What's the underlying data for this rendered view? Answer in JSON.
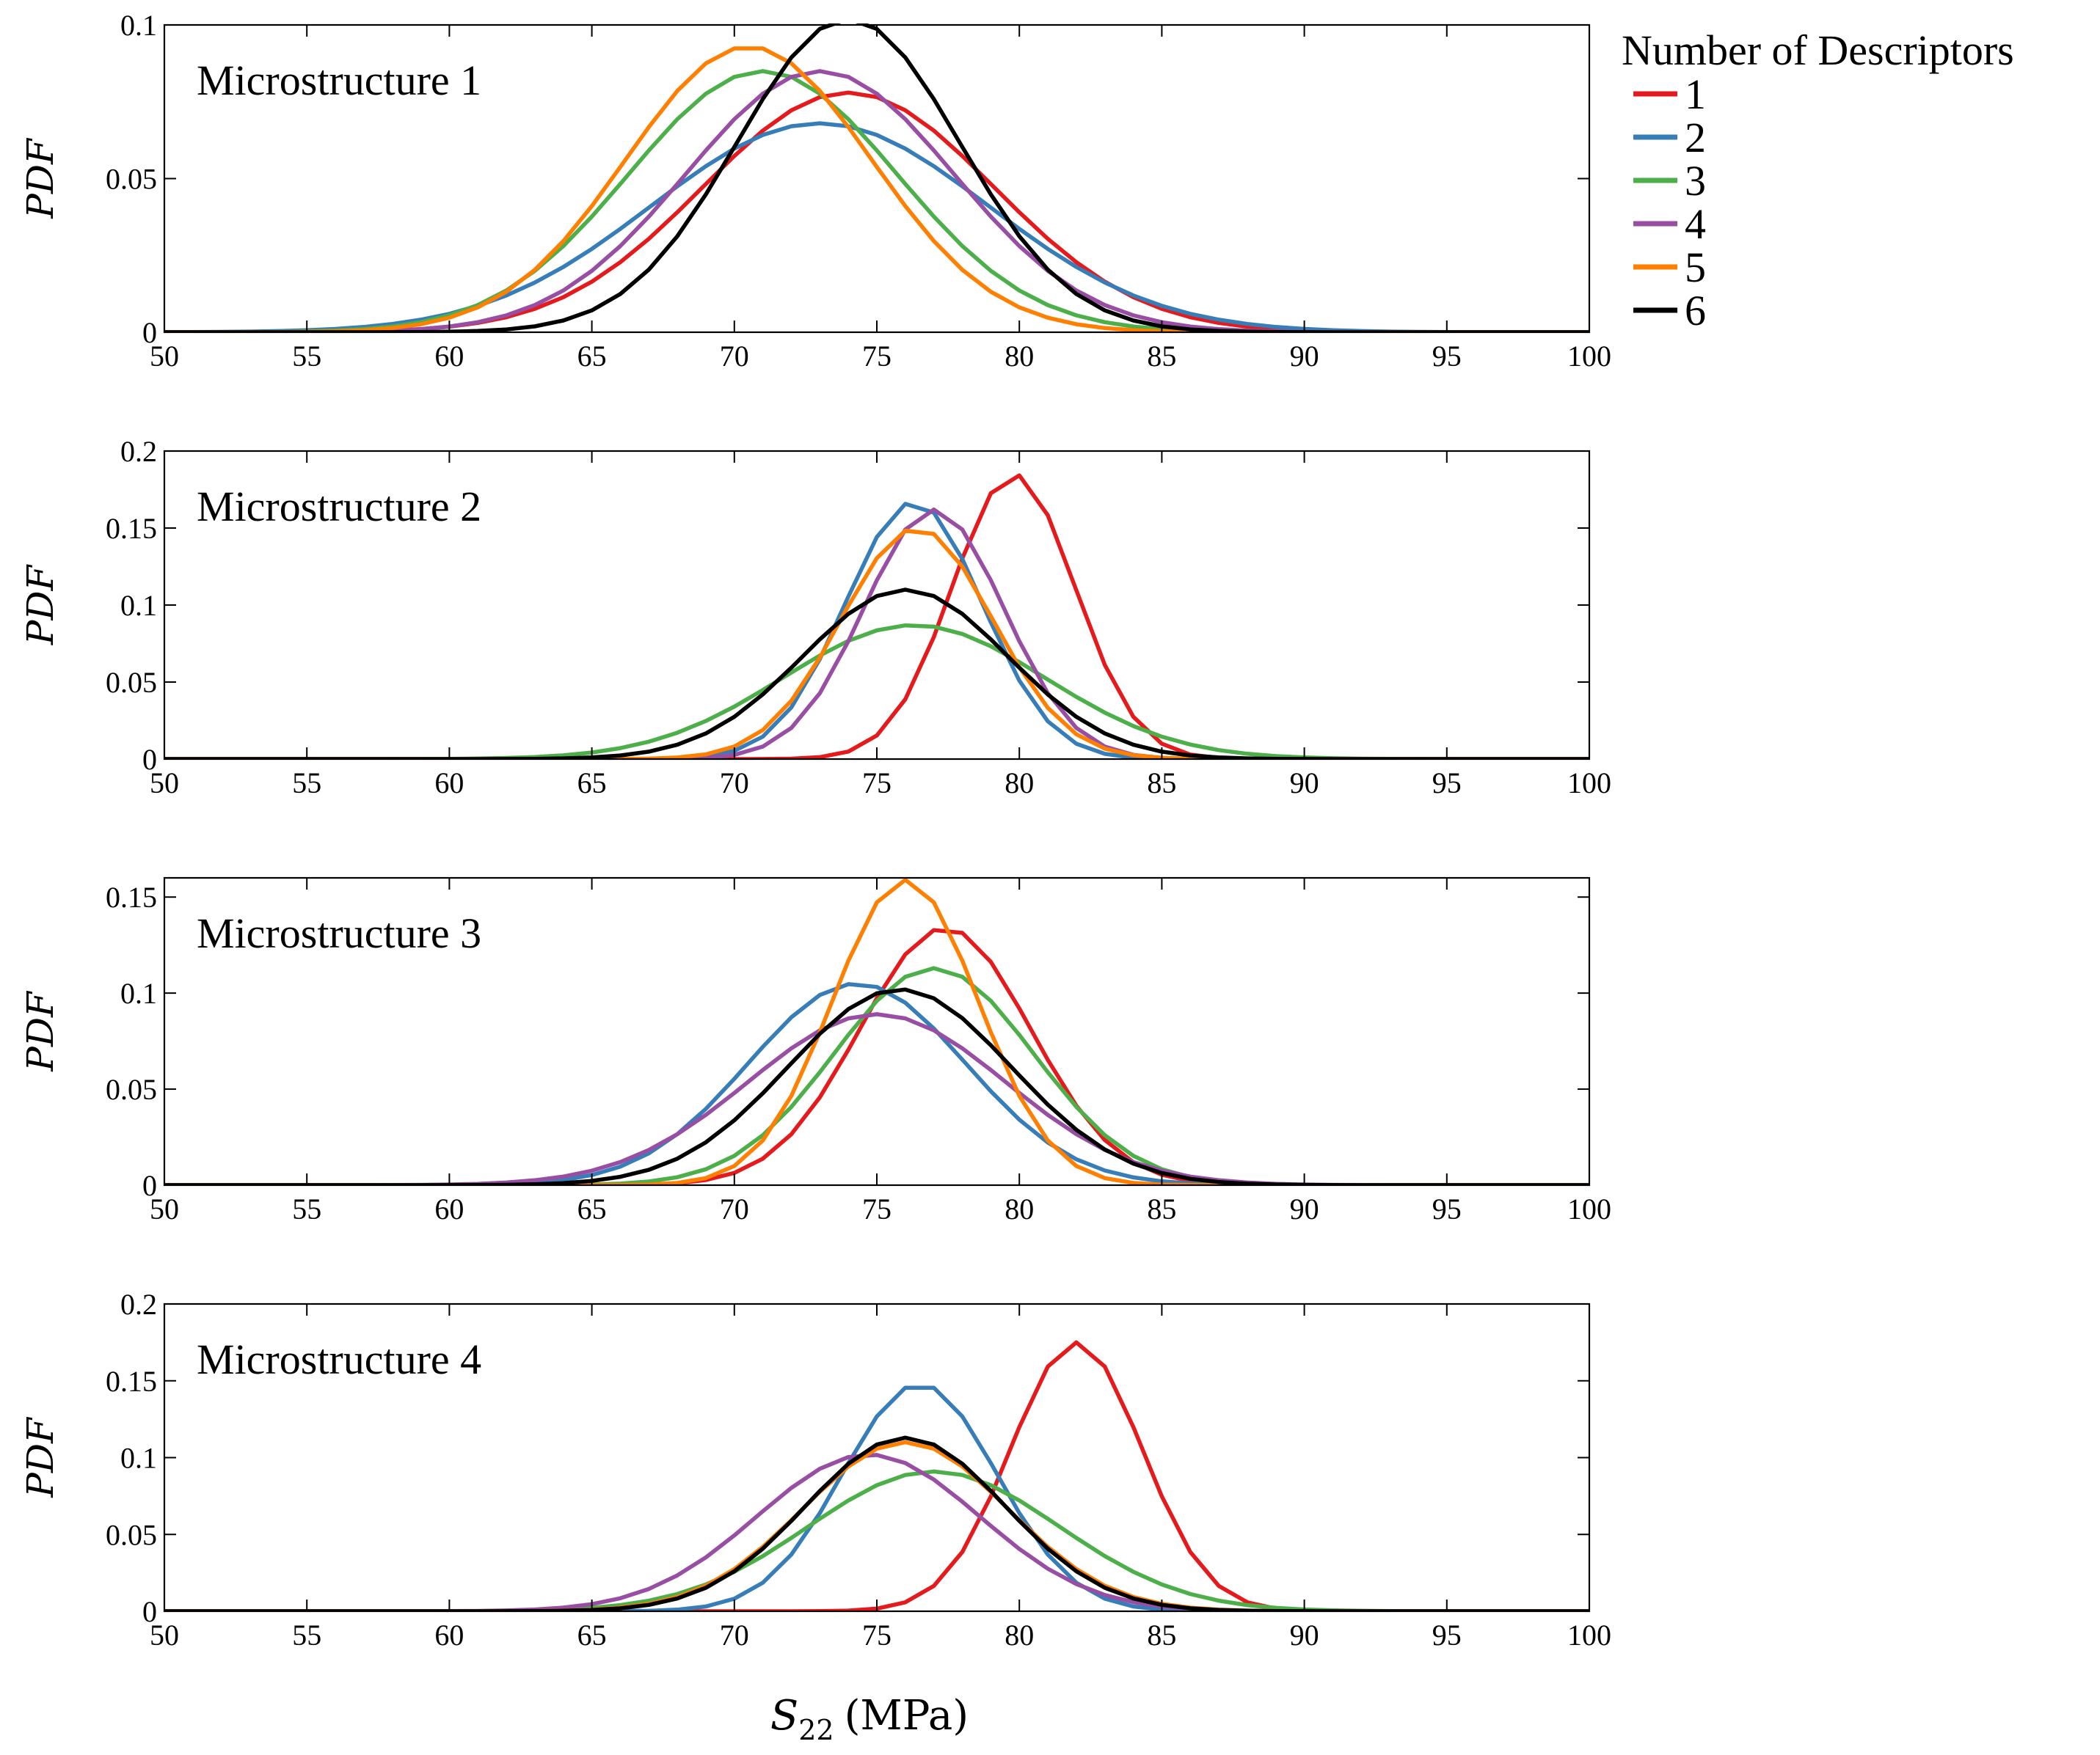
{
  "chart_data": {
    "type": "line",
    "shared_x": [
      50,
      51,
      52,
      53,
      54,
      55,
      56,
      57,
      58,
      59,
      60,
      61,
      62,
      63,
      64,
      65,
      66,
      67,
      68,
      69,
      70,
      71,
      72,
      73,
      74,
      75,
      76,
      77,
      78,
      79,
      80,
      81,
      82,
      83,
      84,
      85,
      86,
      87,
      88,
      89,
      90,
      91,
      92,
      93,
      94,
      95,
      96,
      97,
      98,
      99,
      100
    ],
    "xlabel": {
      "var": "S",
      "sub": "22",
      "unit": "(MPa)"
    },
    "xlim": [
      50,
      100
    ],
    "xticks": [
      "50",
      "55",
      "60",
      "65",
      "70",
      "75",
      "80",
      "85",
      "90",
      "95",
      "100"
    ],
    "ylabel": "PDF",
    "legend": {
      "title": "Number of Descriptors",
      "position": "top-right, outside plot area",
      "entries": [
        {
          "label": "1",
          "color": "#e41a1c"
        },
        {
          "label": "2",
          "color": "#377eb8"
        },
        {
          "label": "3",
          "color": "#4daf4a"
        },
        {
          "label": "4",
          "color": "#984ea3"
        },
        {
          "label": "5",
          "color": "#ff7f00"
        },
        {
          "label": "6",
          "color": "#000000"
        }
      ]
    },
    "panels": [
      {
        "title": "Microstructure 1",
        "ylim": [
          0,
          0.1
        ],
        "yticks": [
          "0",
          "0.05",
          "0.1"
        ],
        "ytick_values": [
          0,
          0.05,
          0.1
        ],
        "series": [
          {
            "name": "1",
            "color": "#e41a1c",
            "mean": 74,
            "sd": 5.1,
            "peak": 0.078
          },
          {
            "name": "2",
            "color": "#377eb8",
            "mean": 73,
            "sd": 5.9,
            "peak": 0.068
          },
          {
            "name": "3",
            "color": "#4daf4a",
            "mean": 71,
            "sd": 4.7,
            "peak": 0.085
          },
          {
            "name": "4",
            "color": "#984ea3",
            "mean": 73,
            "sd": 4.7,
            "peak": 0.085
          },
          {
            "name": "5",
            "color": "#ff7f00",
            "mean": 70.5,
            "sd": 4.3,
            "peak": 0.093
          },
          {
            "name": "6",
            "color": "#000000",
            "mean": 74,
            "sd": 3.9,
            "peak": 0.102
          }
        ]
      },
      {
        "title": "Microstructure 2",
        "ylim": [
          0,
          0.2
        ],
        "yticks": [
          "0",
          "0.05",
          "0.1",
          "0.15",
          "0.2"
        ],
        "ytick_values": [
          0,
          0.05,
          0.1,
          0.15,
          0.2
        ],
        "series": [
          {
            "name": "1",
            "color": "#e41a1c",
            "mean": 79.8,
            "sd": 2.15,
            "peak": 0.185
          },
          {
            "name": "2",
            "color": "#377eb8",
            "mean": 76.3,
            "sd": 2.4,
            "peak": 0.167
          },
          {
            "name": "3",
            "color": "#4daf4a",
            "mean": 76.3,
            "sd": 4.6,
            "peak": 0.087
          },
          {
            "name": "4",
            "color": "#984ea3",
            "mean": 77,
            "sd": 2.45,
            "peak": 0.162
          },
          {
            "name": "5",
            "color": "#ff7f00",
            "mean": 76.4,
            "sd": 2.65,
            "peak": 0.15
          },
          {
            "name": "6",
            "color": "#000000",
            "mean": 76,
            "sd": 3.6,
            "peak": 0.11
          }
        ]
      },
      {
        "title": "Microstructure 3",
        "ylim": [
          0,
          0.16
        ],
        "yticks": [
          "0",
          "0.05",
          "0.1",
          "0.15"
        ],
        "ytick_values": [
          0,
          0.05,
          0.1,
          0.15
        ],
        "series": [
          {
            "name": "1",
            "color": "#e41a1c",
            "mean": 77.4,
            "sd": 3.0,
            "peak": 0.134
          },
          {
            "name": "2",
            "color": "#377eb8",
            "mean": 74.3,
            "sd": 3.8,
            "peak": 0.105
          },
          {
            "name": "3",
            "color": "#4daf4a",
            "mean": 77,
            "sd": 3.5,
            "peak": 0.113
          },
          {
            "name": "4",
            "color": "#984ea3",
            "mean": 75,
            "sd": 4.5,
            "peak": 0.089
          },
          {
            "name": "5",
            "color": "#ff7f00",
            "mean": 76,
            "sd": 2.55,
            "peak": 0.159
          },
          {
            "name": "6",
            "color": "#000000",
            "mean": 75.8,
            "sd": 3.9,
            "peak": 0.102
          }
        ]
      },
      {
        "title": "Microstructure 4",
        "ylim": [
          0,
          0.2
        ],
        "yticks": [
          "0",
          "0.05",
          "0.1",
          "0.15",
          "0.2"
        ],
        "ytick_values": [
          0,
          0.05,
          0.1,
          0.15,
          0.2
        ],
        "series": [
          {
            "name": "1",
            "color": "#e41a1c",
            "mean": 82,
            "sd": 2.3,
            "peak": 0.175
          },
          {
            "name": "2",
            "color": "#377eb8",
            "mean": 76.5,
            "sd": 2.7,
            "peak": 0.148
          },
          {
            "name": "3",
            "color": "#4daf4a",
            "mean": 77,
            "sd": 4.4,
            "peak": 0.091
          },
          {
            "name": "4",
            "color": "#984ea3",
            "mean": 74.7,
            "sd": 3.9,
            "peak": 0.102
          },
          {
            "name": "5",
            "color": "#ff7f00",
            "mean": 76,
            "sd": 3.6,
            "peak": 0.11
          },
          {
            "name": "6",
            "color": "#000000",
            "mean": 76,
            "sd": 3.5,
            "peak": 0.113
          }
        ]
      }
    ]
  }
}
